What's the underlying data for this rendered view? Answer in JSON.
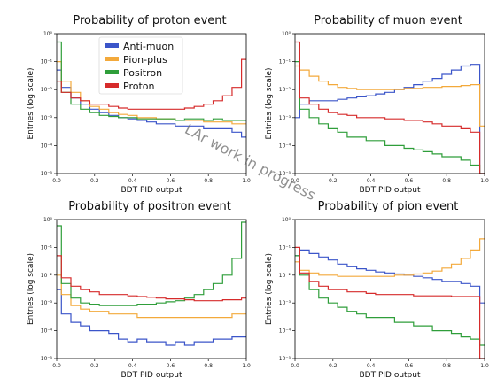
{
  "chart_data": [
    {
      "type": "line",
      "title": "Probability of proton event",
      "xlabel": "BDT PID output",
      "ylabel": "Entries (log scale)",
      "xlim": [
        0,
        1
      ],
      "ylim": [
        1e-05,
        1
      ],
      "log_y": true,
      "xticks": [
        "0.0",
        "0.2",
        "0.4",
        "0.6",
        "0.8",
        "1.0"
      ],
      "yticks": [
        "10⁻⁵",
        "10⁻⁴",
        "10⁻³",
        "10⁻²",
        "10⁻¹",
        "10⁰"
      ],
      "grid": false,
      "legend": "upper-left",
      "x": [
        0.0,
        0.05,
        0.1,
        0.15,
        0.2,
        0.25,
        0.3,
        0.35,
        0.4,
        0.45,
        0.5,
        0.55,
        0.6,
        0.65,
        0.7,
        0.75,
        0.8,
        0.85,
        0.9,
        0.95,
        1.0
      ],
      "series": [
        {
          "name": "Anti-muon",
          "values": [
            0.05,
            0.012,
            0.005,
            0.003,
            0.002,
            0.0015,
            0.0012,
            0.001,
            0.0009,
            0.0008,
            0.0007,
            0.0006,
            0.0006,
            0.0005,
            0.0005,
            0.0005,
            0.0004,
            0.0004,
            0.0004,
            0.0003,
            0.0002
          ]
        },
        {
          "name": "Pion-plus",
          "values": [
            0.1,
            0.02,
            0.008,
            0.004,
            0.0025,
            0.002,
            0.0015,
            0.0013,
            0.0012,
            0.001,
            0.001,
            0.0009,
            0.0009,
            0.0008,
            0.0008,
            0.0008,
            0.0007,
            0.0007,
            0.0007,
            0.0006,
            0.0006
          ]
        },
        {
          "name": "Positron",
          "values": [
            0.5,
            0.008,
            0.003,
            0.002,
            0.0015,
            0.0012,
            0.0011,
            0.001,
            0.001,
            0.0009,
            0.0009,
            0.0009,
            0.0009,
            0.0008,
            0.0009,
            0.0009,
            0.0008,
            0.0009,
            0.0008,
            0.0008,
            0.0008
          ]
        },
        {
          "name": "Proton",
          "values": [
            0.02,
            0.008,
            0.005,
            0.004,
            0.003,
            0.003,
            0.0025,
            0.0022,
            0.002,
            0.002,
            0.002,
            0.002,
            0.002,
            0.002,
            0.0022,
            0.0025,
            0.003,
            0.004,
            0.006,
            0.012,
            0.12
          ]
        }
      ]
    },
    {
      "type": "line",
      "title": "Probability of muon event",
      "xlabel": "BDT PID output",
      "ylabel": "Entries (log scale)",
      "xlim": [
        0,
        1
      ],
      "ylim": [
        1e-05,
        1
      ],
      "log_y": true,
      "xticks": [
        "0.0",
        "0.2",
        "0.4",
        "0.6",
        "0.8",
        "1.0"
      ],
      "yticks": [
        "10⁻⁵",
        "10⁻⁴",
        "10⁻³",
        "10⁻²",
        "10⁻¹",
        "10⁰"
      ],
      "grid": false,
      "x": [
        0.0,
        0.05,
        0.1,
        0.15,
        0.2,
        0.25,
        0.3,
        0.35,
        0.4,
        0.45,
        0.5,
        0.55,
        0.6,
        0.65,
        0.7,
        0.75,
        0.8,
        0.85,
        0.9,
        0.95,
        1.0
      ],
      "series": [
        {
          "name": "Anti-muon",
          "values": [
            0.001,
            0.003,
            0.004,
            0.004,
            0.004,
            0.0045,
            0.005,
            0.0055,
            0.006,
            0.007,
            0.008,
            0.01,
            0.012,
            0.015,
            0.02,
            0.025,
            0.035,
            0.05,
            0.07,
            0.08,
            1e-05
          ]
        },
        {
          "name": "Pion-plus",
          "values": [
            0.07,
            0.05,
            0.03,
            0.02,
            0.015,
            0.012,
            0.011,
            0.01,
            0.01,
            0.01,
            0.01,
            0.01,
            0.011,
            0.011,
            0.012,
            0.012,
            0.013,
            0.013,
            0.014,
            0.015,
            0.0005
          ]
        },
        {
          "name": "Positron",
          "values": [
            0.1,
            0.002,
            0.001,
            0.0006,
            0.0004,
            0.0003,
            0.0002,
            0.0002,
            0.00015,
            0.00015,
            0.0001,
            0.0001,
            8e-05,
            7e-05,
            6e-05,
            5e-05,
            4e-05,
            4e-05,
            3e-05,
            2e-05,
            1e-05
          ]
        },
        {
          "name": "Proton",
          "values": [
            0.5,
            0.005,
            0.003,
            0.002,
            0.0015,
            0.0013,
            0.0012,
            0.001,
            0.001,
            0.001,
            0.0009,
            0.0009,
            0.0008,
            0.0008,
            0.0007,
            0.0006,
            0.0005,
            0.0005,
            0.0004,
            0.0003,
            1e-05
          ]
        }
      ]
    },
    {
      "type": "line",
      "title": "Probability of positron event",
      "xlabel": "BDT PID output",
      "ylabel": "Entries (log scale)",
      "xlim": [
        0,
        1
      ],
      "ylim": [
        1e-05,
        1
      ],
      "log_y": true,
      "xticks": [
        "0.0",
        "0.2",
        "0.4",
        "0.6",
        "0.8",
        "1.0"
      ],
      "yticks": [
        "10⁻⁵",
        "10⁻⁴",
        "10⁻³",
        "10⁻²",
        "10⁻¹",
        "10⁰"
      ],
      "grid": false,
      "x": [
        0.0,
        0.05,
        0.1,
        0.15,
        0.2,
        0.25,
        0.3,
        0.35,
        0.4,
        0.45,
        0.5,
        0.55,
        0.6,
        0.65,
        0.7,
        0.75,
        0.8,
        0.85,
        0.9,
        0.95,
        1.0
      ],
      "series": [
        {
          "name": "Anti-muon",
          "values": [
            0.003,
            0.0004,
            0.0002,
            0.00015,
            0.0001,
            0.0001,
            8e-05,
            5e-05,
            4e-05,
            5e-05,
            4e-05,
            4e-05,
            3e-05,
            4e-05,
            3e-05,
            4e-05,
            4e-05,
            5e-05,
            5e-05,
            6e-05,
            6e-05
          ]
        },
        {
          "name": "Pion-plus",
          "values": [
            0.01,
            0.002,
            0.0008,
            0.0006,
            0.0005,
            0.0005,
            0.0004,
            0.0004,
            0.0004,
            0.0003,
            0.0003,
            0.0003,
            0.0003,
            0.0003,
            0.0003,
            0.0003,
            0.0003,
            0.0003,
            0.0003,
            0.0004,
            0.0004
          ]
        },
        {
          "name": "Positron",
          "values": [
            0.6,
            0.005,
            0.0015,
            0.001,
            0.0009,
            0.0008,
            0.0008,
            0.0008,
            0.0008,
            0.0009,
            0.0009,
            0.001,
            0.0011,
            0.0012,
            0.0015,
            0.002,
            0.003,
            0.005,
            0.01,
            0.04,
            0.8
          ]
        },
        {
          "name": "Proton",
          "values": [
            0.05,
            0.008,
            0.004,
            0.003,
            0.0025,
            0.002,
            0.002,
            0.002,
            0.0018,
            0.0017,
            0.0016,
            0.0015,
            0.0014,
            0.0014,
            0.0013,
            0.0012,
            0.0012,
            0.0012,
            0.0013,
            0.0013,
            0.0015
          ]
        }
      ]
    },
    {
      "type": "line",
      "title": "Probability of pion event",
      "xlabel": "BDT PID output",
      "ylabel": "Entries (log scale)",
      "xlim": [
        0,
        1
      ],
      "ylim": [
        1e-05,
        1
      ],
      "log_y": true,
      "xticks": [
        "0.0",
        "0.2",
        "0.4",
        "0.6",
        "0.8",
        "1.0"
      ],
      "yticks": [
        "10⁻⁵",
        "10⁻⁴",
        "10⁻³",
        "10⁻²",
        "10⁻¹",
        "10⁰"
      ],
      "grid": false,
      "x": [
        0.0,
        0.05,
        0.1,
        0.15,
        0.2,
        0.25,
        0.3,
        0.35,
        0.4,
        0.45,
        0.5,
        0.55,
        0.6,
        0.65,
        0.7,
        0.75,
        0.8,
        0.85,
        0.9,
        0.95,
        1.0
      ],
      "series": [
        {
          "name": "Anti-muon",
          "values": [
            0.05,
            0.08,
            0.06,
            0.045,
            0.035,
            0.025,
            0.02,
            0.017,
            0.015,
            0.013,
            0.012,
            0.011,
            0.01,
            0.009,
            0.008,
            0.007,
            0.006,
            0.006,
            0.005,
            0.004,
            0.001
          ]
        },
        {
          "name": "Pion-plus",
          "values": [
            0.03,
            0.015,
            0.012,
            0.01,
            0.01,
            0.009,
            0.009,
            0.009,
            0.009,
            0.009,
            0.009,
            0.01,
            0.01,
            0.011,
            0.012,
            0.014,
            0.018,
            0.025,
            0.04,
            0.08,
            0.2
          ]
        },
        {
          "name": "Positron",
          "values": [
            0.05,
            0.01,
            0.003,
            0.0015,
            0.001,
            0.0007,
            0.0005,
            0.0004,
            0.0003,
            0.0003,
            0.0003,
            0.0002,
            0.0002,
            0.00015,
            0.00015,
            0.0001,
            0.0001,
            8e-05,
            6e-05,
            5e-05,
            3e-05
          ]
        },
        {
          "name": "Proton",
          "values": [
            0.1,
            0.012,
            0.006,
            0.004,
            0.003,
            0.003,
            0.0025,
            0.0025,
            0.0022,
            0.002,
            0.002,
            0.002,
            0.002,
            0.0018,
            0.0018,
            0.0018,
            0.0018,
            0.0017,
            0.0017,
            0.0017,
            1e-05
          ]
        }
      ]
    }
  ],
  "legend": {
    "entries": [
      {
        "name": "Anti-muon",
        "color": "#3b55c9"
      },
      {
        "name": "Pion-plus",
        "color": "#f3a93b"
      },
      {
        "name": "Positron",
        "color": "#2f9e3a"
      },
      {
        "name": "Proton",
        "color": "#d62b2b"
      }
    ]
  },
  "watermark": "LAr work in progress"
}
